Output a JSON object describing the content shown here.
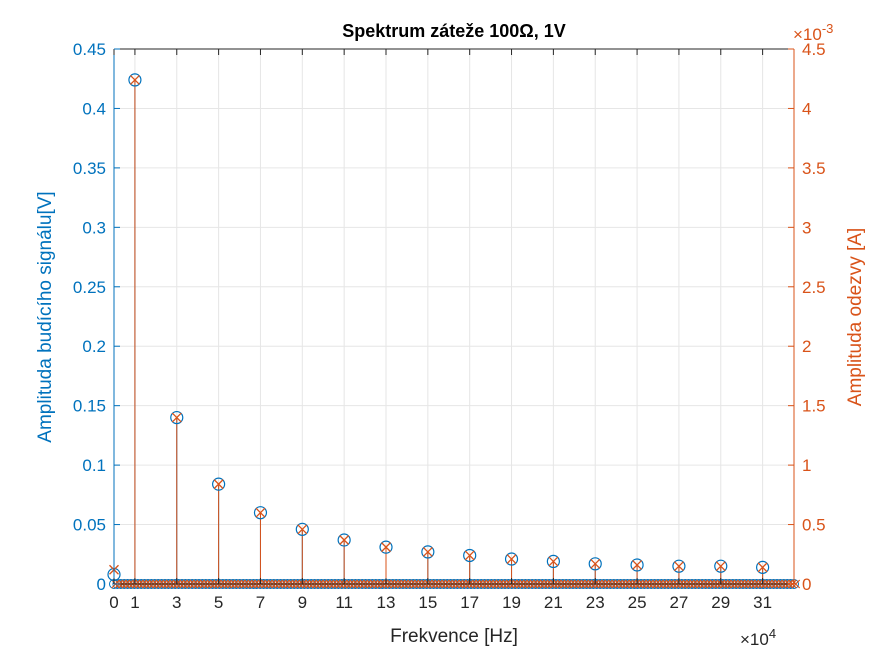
{
  "chart_data": {
    "type": "stem",
    "title": "Spektrum záteže 100Ω, 1V",
    "xlabel": "Frekvence [Hz]",
    "x_exponent_label": "×10",
    "x_exponent_power": "4",
    "xlim": [
      0,
      32.5
    ],
    "x_scale": 10000,
    "x_ticks": [
      0,
      1,
      3,
      5,
      7,
      9,
      11,
      13,
      15,
      17,
      19,
      21,
      23,
      25,
      27,
      29,
      31
    ],
    "x_tick_labels": [
      "0",
      "1",
      "3",
      "5",
      "7",
      "9",
      "11",
      "13",
      "15",
      "17",
      "19",
      "21",
      "23",
      "25",
      "27",
      "29",
      "31"
    ],
    "left_axis": {
      "label": "Amplituda budícího signálu[V]",
      "ylim": [
        0,
        0.45
      ],
      "ticks": [
        0,
        0.05,
        0.1,
        0.15,
        0.2,
        0.25,
        0.3,
        0.35,
        0.4,
        0.45
      ],
      "tick_labels": [
        "0",
        "0.05",
        "0.1",
        "0.15",
        "0.2",
        "0.25",
        "0.3",
        "0.35",
        "0.4",
        "0.45"
      ]
    },
    "right_axis": {
      "label": "Amplituda odezvy [A]",
      "ylim": [
        0,
        4.5
      ],
      "ticks": [
        0,
        0.5,
        1,
        1.5,
        2,
        2.5,
        3,
        3.5,
        4,
        4.5
      ],
      "tick_labels": [
        "0",
        "0.5",
        "1",
        "1.5",
        "2",
        "2.5",
        "3",
        "3.5",
        "4",
        "4.5"
      ],
      "exponent_label": "×10",
      "exponent_power": "-3"
    },
    "grid": true,
    "colors": {
      "left": "#0072BD",
      "right": "#D95319",
      "grid": "#e6e6e6",
      "axis": "#262626"
    },
    "series": [
      {
        "axis": "left",
        "marker": "circle",
        "x": [
          0,
          1,
          3,
          5,
          7,
          9,
          11,
          13,
          15,
          17,
          19,
          21,
          23,
          25,
          27,
          29,
          31
        ],
        "values": [
          0.008,
          0.424,
          0.14,
          0.084,
          0.06,
          0.046,
          0.037,
          0.031,
          0.027,
          0.024,
          0.021,
          0.019,
          0.017,
          0.016,
          0.015,
          0.015,
          0.014
        ]
      },
      {
        "axis": "right",
        "marker": "x",
        "x": [
          0,
          1,
          3,
          5,
          7,
          9,
          11,
          13,
          15,
          17,
          19,
          21,
          23,
          25,
          27,
          29,
          31
        ],
        "values": [
          0.12,
          4.24,
          1.4,
          0.84,
          0.6,
          0.46,
          0.37,
          0.31,
          0.27,
          0.24,
          0.21,
          0.19,
          0.17,
          0.16,
          0.15,
          0.15,
          0.14
        ]
      }
    ]
  }
}
